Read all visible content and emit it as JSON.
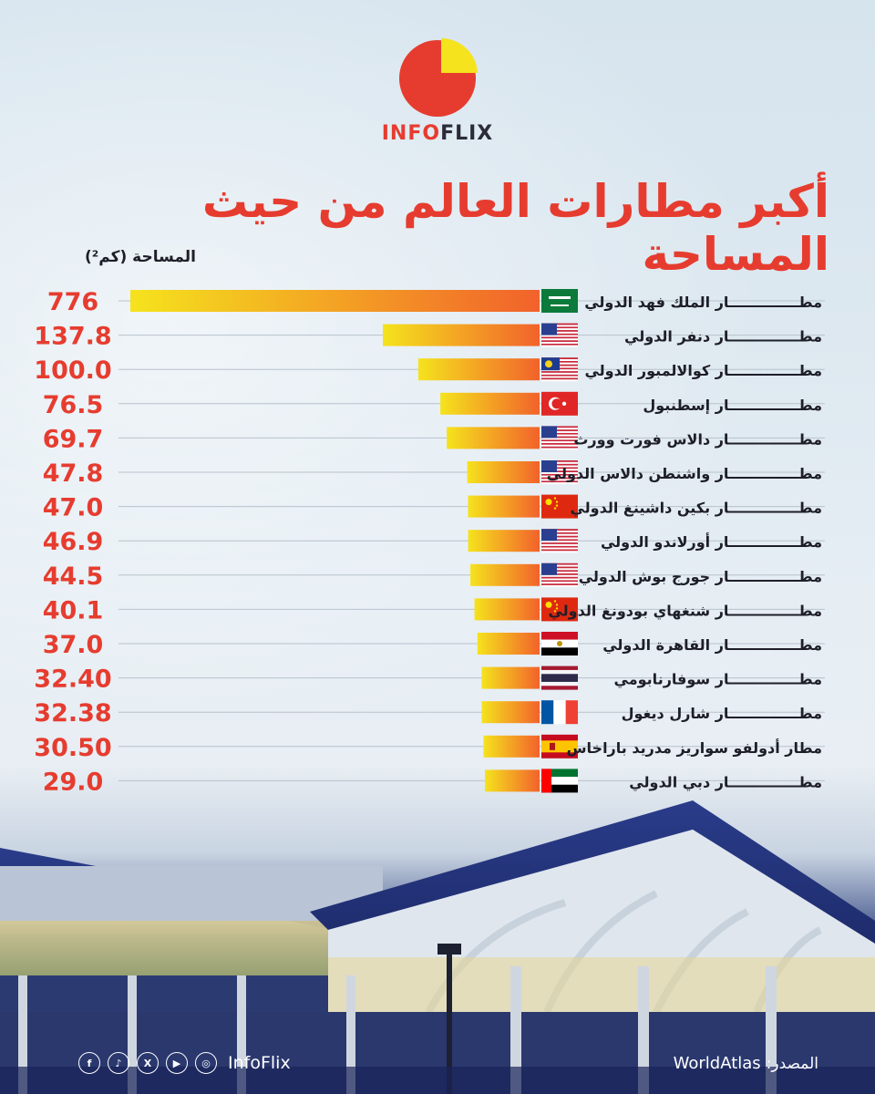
{
  "brand": {
    "part1": "INFO",
    "part2": "FLIX"
  },
  "header": {
    "title": "أكبر مطارات العالم من حيث المساحة",
    "unit_label": "المساحة (كم²)"
  },
  "chart_data": {
    "type": "bar",
    "orientation": "horizontal",
    "title": "أكبر مطارات العالم من حيث المساحة",
    "value_axis_label": "المساحة (كم²)",
    "categories": [
      "مطــــــــــــــار الملك فهد الدولي",
      "مطــــــــــــــار دنفر الدولي",
      "مطــــــــــــــار كوالالمبور الدولي",
      "مطــــــــــــــار إسطنبول",
      "مطــــــــــــــار دالاس فورت وورث",
      "مطــــــــــــــار واشنطن دالاس الدولي",
      "مطــــــــــــــار بكين داشينغ الدولي",
      "مطــــــــــــــار أورلاندو الدولي",
      "مطــــــــــــــار جورج بوش الدولي",
      "مطــــــــــــــار شنغهاي بودونغ الدولي",
      "مطــــــــــــــار القاهرة الدولي",
      "مطــــــــــــــار سوفارنابومي",
      "مطــــــــــــــار شارل ديغول",
      "مطار أدولفو سواريز مدريد باراخاس",
      "مطــــــــــــــار دبي الدولي"
    ],
    "values": [
      776,
      137.8,
      100.0,
      76.5,
      69.7,
      47.8,
      47.0,
      46.9,
      44.5,
      40.1,
      37.0,
      32.4,
      32.38,
      30.5,
      29.0
    ],
    "value_labels": [
      "776",
      "137.8",
      "100.0",
      "76.5",
      "69.7",
      "47.8",
      "47.0",
      "46.9",
      "44.5",
      "40.1",
      "37.0",
      "32.40",
      "32.38",
      "30.50",
      "29.0"
    ],
    "flags": [
      "saudi-arabia",
      "usa",
      "malaysia",
      "turkey",
      "usa",
      "usa",
      "china",
      "usa",
      "usa",
      "china",
      "egypt",
      "thailand",
      "france",
      "spain",
      "uae"
    ],
    "colors": {
      "bar_start": "#f5e31d",
      "bar_end": "#f2622b",
      "value_text": "#e63c2f",
      "label_text": "#1e1e28",
      "gridline": "#b8c2cc"
    },
    "grid": true
  },
  "footer": {
    "social_icons": [
      "facebook-icon",
      "tiktok-icon",
      "x-icon",
      "youtube-icon",
      "instagram-icon"
    ],
    "handle": "InfoFlix",
    "source_label": "المصدر:",
    "source": "WorldAtlas"
  }
}
